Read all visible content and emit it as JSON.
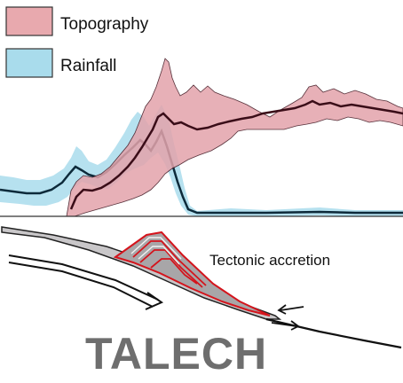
{
  "legend": {
    "topography": {
      "label": "Topography",
      "color": "#e8a9ae"
    },
    "rainfall": {
      "label": "Rainfall",
      "color": "#a9dcec"
    }
  },
  "annotation": {
    "tectonic_accretion": "Tectonic accretion"
  },
  "brand": {
    "text": "TALECH"
  },
  "colors": {
    "topography_fill": "#e3a3ab",
    "rainfall_fill": "#a9dcec",
    "profile_line": "#3a0d18",
    "rainfall_line": "#0d2a3a",
    "wedge_outline": "#d4141c",
    "wedge_fill": "#a8a6a8",
    "brand_color": "#6e6e6e"
  }
}
